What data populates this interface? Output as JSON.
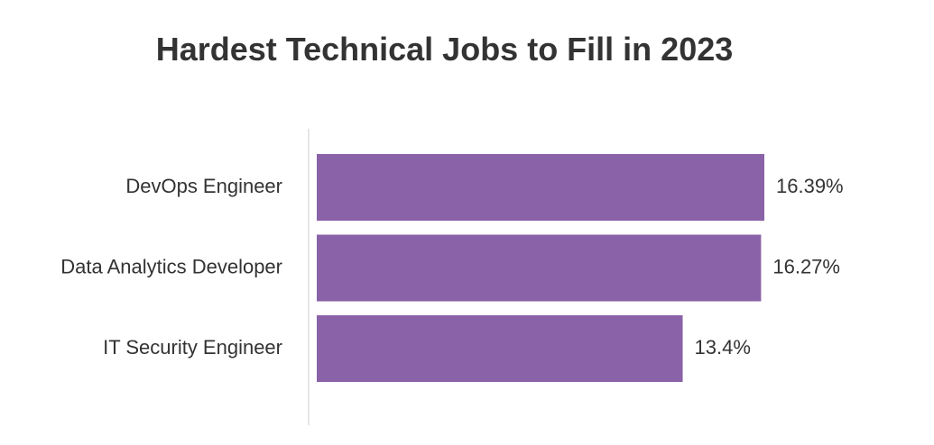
{
  "chart_data": {
    "type": "bar",
    "orientation": "horizontal",
    "title": "Hardest Technical Jobs to Fill in 2023",
    "categories": [
      "DevOps Engineer",
      "Data Analytics Developer",
      "IT Security Engineer"
    ],
    "values": [
      16.39,
      16.27,
      13.4
    ],
    "value_labels": [
      "16.39%",
      "16.27%",
      "13.4%"
    ],
    "xlim": [
      0,
      16.39
    ],
    "grid": false,
    "legend": "none",
    "bar_color": "#8a62a8"
  }
}
